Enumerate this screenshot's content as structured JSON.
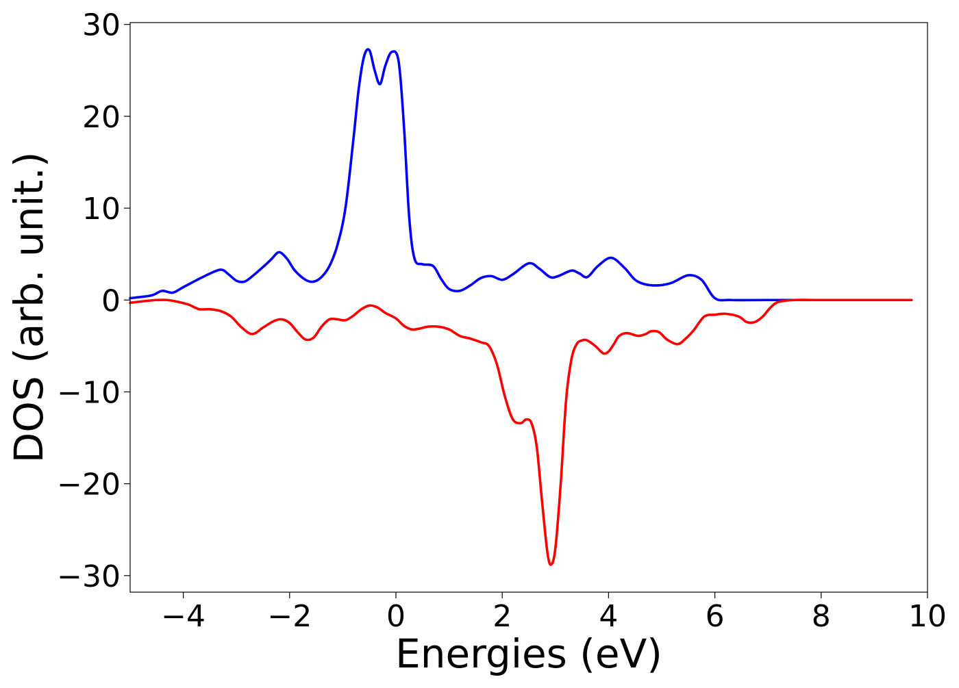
{
  "chart_data": {
    "type": "line",
    "xlabel": "Energies (eV)",
    "ylabel": "DOS (arb. unit.)",
    "xlim": [
      -5,
      10
    ],
    "ylim": [
      -31.8,
      30.2
    ],
    "xticks": [
      -4,
      -2,
      0,
      2,
      4,
      6,
      8,
      10
    ],
    "xtick_labels": [
      "−4",
      "−2",
      "0",
      "2",
      "4",
      "6",
      "8",
      "10"
    ],
    "yticks": [
      -30,
      -20,
      -10,
      0,
      10,
      20,
      30
    ],
    "ytick_labels": [
      "−30",
      "−20",
      "−10",
      "0",
      "10",
      "20",
      "30"
    ],
    "grid": false,
    "legend": "none",
    "series": [
      {
        "color": "#0000ff",
        "x": [
          -5.0,
          -4.6,
          -4.4,
          -4.2,
          -4.0,
          -3.6,
          -3.3,
          -3.15,
          -3.0,
          -2.85,
          -2.7,
          -2.5,
          -2.35,
          -2.2,
          -2.05,
          -1.9,
          -1.7,
          -1.55,
          -1.4,
          -1.25,
          -1.1,
          -0.95,
          -0.8,
          -0.7,
          -0.6,
          -0.5,
          -0.4,
          -0.3,
          -0.2,
          -0.08,
          0.05,
          0.15,
          0.25,
          0.35,
          0.5,
          0.7,
          0.85,
          1.0,
          1.2,
          1.4,
          1.6,
          1.8,
          2.0,
          2.2,
          2.5,
          2.7,
          2.9,
          3.05,
          3.3,
          3.45,
          3.6,
          3.8,
          4.05,
          4.3,
          4.5,
          4.7,
          4.95,
          5.2,
          5.5,
          5.75,
          6.0,
          6.3,
          7.0,
          8.0,
          9.0,
          9.7
        ],
        "y": [
          0.2,
          0.5,
          1.0,
          0.8,
          1.4,
          2.6,
          3.3,
          2.8,
          2.1,
          2.0,
          2.6,
          3.6,
          4.4,
          5.2,
          4.5,
          3.2,
          2.2,
          2.0,
          2.5,
          3.7,
          6.0,
          10.0,
          17.5,
          23.0,
          26.5,
          27.2,
          25.0,
          23.5,
          25.5,
          27.0,
          26.0,
          19.0,
          9.0,
          4.5,
          3.9,
          3.7,
          2.3,
          1.2,
          1.0,
          1.6,
          2.4,
          2.6,
          2.2,
          2.8,
          4.0,
          3.4,
          2.5,
          2.6,
          3.2,
          2.9,
          2.5,
          3.7,
          4.6,
          3.5,
          2.2,
          1.7,
          1.6,
          1.9,
          2.7,
          2.2,
          0.2,
          0.0,
          0.0,
          0.0,
          0.0,
          0.0
        ]
      },
      {
        "color": "#ff0000",
        "x": [
          -5.0,
          -4.7,
          -4.5,
          -4.3,
          -4.1,
          -3.9,
          -3.7,
          -3.5,
          -3.3,
          -3.1,
          -2.9,
          -2.7,
          -2.5,
          -2.3,
          -2.15,
          -2.0,
          -1.85,
          -1.7,
          -1.55,
          -1.4,
          -1.25,
          -1.1,
          -0.95,
          -0.8,
          -0.65,
          -0.5,
          -0.35,
          -0.2,
          0.0,
          0.15,
          0.3,
          0.45,
          0.6,
          0.8,
          1.0,
          1.2,
          1.4,
          1.6,
          1.75,
          1.9,
          2.05,
          2.2,
          2.35,
          2.45,
          2.55,
          2.65,
          2.75,
          2.85,
          2.92,
          3.0,
          3.1,
          3.2,
          3.3,
          3.4,
          3.5,
          3.6,
          3.75,
          3.9,
          4.0,
          4.1,
          4.2,
          4.35,
          4.55,
          4.7,
          4.8,
          4.95,
          5.1,
          5.3,
          5.45,
          5.6,
          5.8,
          6.0,
          6.2,
          6.45,
          6.6,
          6.75,
          6.9,
          7.05,
          7.2,
          7.5,
          8.0,
          9.0,
          9.7
        ],
        "y": [
          -0.3,
          -0.1,
          0.0,
          0.0,
          -0.2,
          -0.5,
          -1.0,
          -1.0,
          -1.2,
          -1.8,
          -3.0,
          -3.7,
          -3.0,
          -2.3,
          -2.1,
          -2.5,
          -3.5,
          -4.3,
          -4.1,
          -2.9,
          -2.1,
          -2.1,
          -2.2,
          -1.7,
          -1.0,
          -0.6,
          -0.8,
          -1.4,
          -2.0,
          -2.8,
          -3.2,
          -3.1,
          -2.9,
          -2.9,
          -3.2,
          -3.9,
          -4.2,
          -4.6,
          -5.0,
          -7.0,
          -10.5,
          -13.0,
          -13.4,
          -13.0,
          -13.4,
          -16.0,
          -22.0,
          -27.5,
          -28.8,
          -27.0,
          -20.0,
          -11.0,
          -6.5,
          -4.8,
          -4.4,
          -4.4,
          -5.0,
          -5.8,
          -5.6,
          -4.8,
          -3.9,
          -3.6,
          -3.9,
          -3.7,
          -3.4,
          -3.5,
          -4.3,
          -4.8,
          -4.2,
          -3.3,
          -1.8,
          -1.6,
          -1.5,
          -1.8,
          -2.4,
          -2.4,
          -1.8,
          -0.8,
          -0.2,
          0.0,
          0.0,
          0.0,
          0.0
        ]
      }
    ]
  }
}
